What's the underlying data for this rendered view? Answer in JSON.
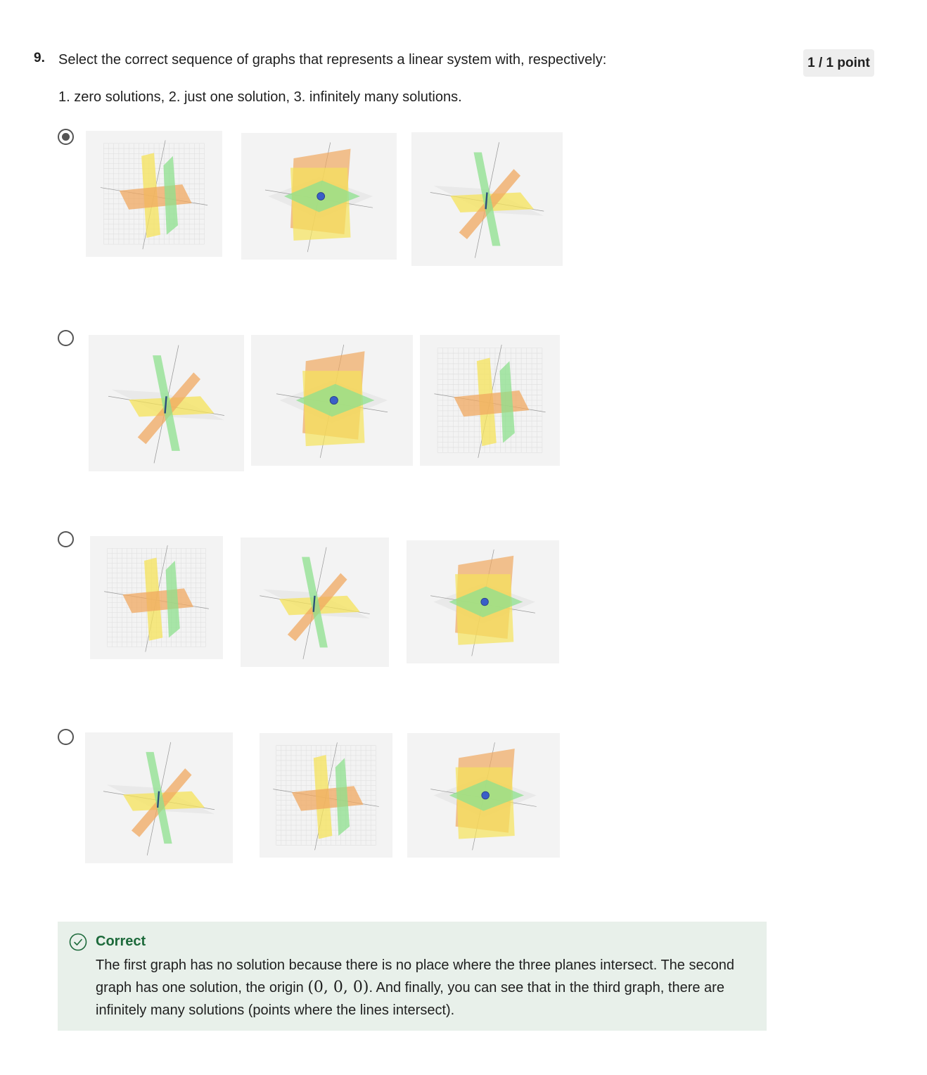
{
  "question": {
    "number": "9.",
    "text": "Select the correct sequence of graphs that represents a linear system with, respectively:",
    "subtext": "1. zero solutions, 2. just one solution, 3. infinitely many solutions.",
    "points": "1 / 1 point"
  },
  "options": [
    {
      "selected": true,
      "graphs": [
        "no-solution",
        "one-solution",
        "infinite-solutions"
      ]
    },
    {
      "selected": false,
      "graphs": [
        "infinite-solutions",
        "one-solution",
        "no-solution"
      ]
    },
    {
      "selected": false,
      "graphs": [
        "no-solution",
        "infinite-solutions",
        "one-solution"
      ]
    },
    {
      "selected": false,
      "graphs": [
        "infinite-solutions",
        "no-solution",
        "one-solution"
      ]
    }
  ],
  "feedback": {
    "title": "Correct",
    "text_before": "The first graph has no solution because there is no place where the three planes intersect. The second graph has one solution, the origin ",
    "math": "(0, 0, 0)",
    "text_after": ". And finally, you can see that in the third graph, there are infinitely many solutions (points where the lines intersect).",
    "color": "#1d6a3b",
    "background": "#e8f0ea"
  },
  "colors": {
    "plane_orange": "#f0a860",
    "plane_yellow": "#f5e35a",
    "plane_green": "#8de08d",
    "point_blue": "#3a5fc8"
  }
}
